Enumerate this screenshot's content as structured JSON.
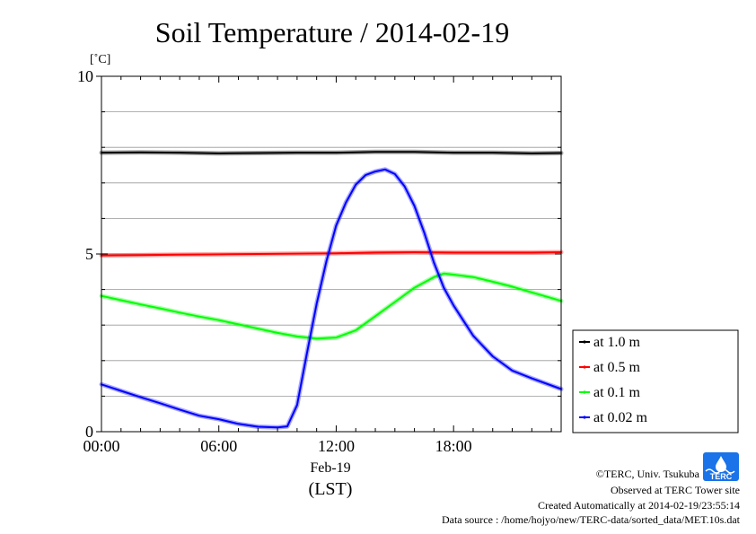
{
  "chart_data": {
    "type": "line",
    "title": "Soil Temperature / 2014-02-19",
    "y_unit": "[˚C]",
    "ylim": [
      0,
      10
    ],
    "y_ticks": [
      0,
      5,
      10
    ],
    "y_tick_labels": [
      "0",
      "5",
      "10"
    ],
    "xlim": [
      0,
      23.5
    ],
    "x_ticks": [
      0,
      6,
      12,
      18
    ],
    "x_tick_labels": [
      "00:00",
      "06:00",
      "12:00",
      "18:00"
    ],
    "x_date_label": "Feb-19",
    "x_label": "(LST)",
    "grid": "horizontal",
    "legend_position": "bottom-right outside plot",
    "series": [
      {
        "name": "at 1.0 m",
        "color": "#000000",
        "x": [
          0,
          2,
          4,
          6,
          8,
          10,
          12,
          14,
          16,
          18,
          20,
          22,
          23.5
        ],
        "y": [
          7.85,
          7.86,
          7.85,
          7.83,
          7.84,
          7.85,
          7.85,
          7.87,
          7.87,
          7.85,
          7.85,
          7.83,
          7.84
        ]
      },
      {
        "name": "at 0.5 m",
        "color": "#ff0000",
        "x": [
          0,
          2,
          4,
          6,
          8,
          10,
          12,
          14,
          16,
          18,
          20,
          22,
          23.5
        ],
        "y": [
          4.96,
          4.97,
          4.98,
          4.99,
          5.0,
          5.01,
          5.02,
          5.04,
          5.05,
          5.04,
          5.04,
          5.04,
          5.05
        ]
      },
      {
        "name": "at 0.1 m",
        "color": "#00ff00",
        "x": [
          0,
          1,
          2,
          3,
          4,
          5,
          6,
          7,
          8,
          9,
          10,
          11,
          12,
          13,
          14,
          15,
          16,
          17,
          17.5,
          18,
          19,
          20,
          21,
          22,
          23,
          23.5
        ],
        "y": [
          3.82,
          3.7,
          3.58,
          3.47,
          3.35,
          3.24,
          3.14,
          3.02,
          2.9,
          2.78,
          2.68,
          2.62,
          2.65,
          2.85,
          3.25,
          3.65,
          4.05,
          4.35,
          4.45,
          4.42,
          4.35,
          4.22,
          4.08,
          3.92,
          3.76,
          3.68
        ]
      },
      {
        "name": "at 0.02 m",
        "color": "#0000ff",
        "x": [
          0,
          1,
          2,
          3,
          4,
          5,
          6,
          7,
          8,
          9,
          9.5,
          10,
          10.5,
          11,
          11.5,
          12,
          12.5,
          13,
          13.5,
          14,
          14.5,
          15,
          15.5,
          16,
          16.5,
          17,
          17.5,
          18,
          19,
          20,
          21,
          22,
          23,
          23.5
        ],
        "y": [
          1.33,
          1.15,
          0.97,
          0.8,
          0.62,
          0.45,
          0.35,
          0.22,
          0.14,
          0.12,
          0.15,
          0.75,
          2.2,
          3.6,
          4.8,
          5.8,
          6.45,
          6.95,
          7.22,
          7.32,
          7.38,
          7.25,
          6.9,
          6.35,
          5.6,
          4.75,
          4.05,
          3.55,
          2.7,
          2.12,
          1.72,
          1.5,
          1.3,
          1.2
        ]
      }
    ]
  },
  "footer": {
    "copyright": "©TERC, Univ. Tsukuba",
    "observed": "Observed at TERC Tower site",
    "created": "Created Automatically at 2014-02-19/23:55:14",
    "source": "Data source : /home/hojyo/new/TERC-data/sorted_data/MET.10s.dat"
  },
  "logo": {
    "text": "TERC",
    "color": "#1a73e8"
  }
}
